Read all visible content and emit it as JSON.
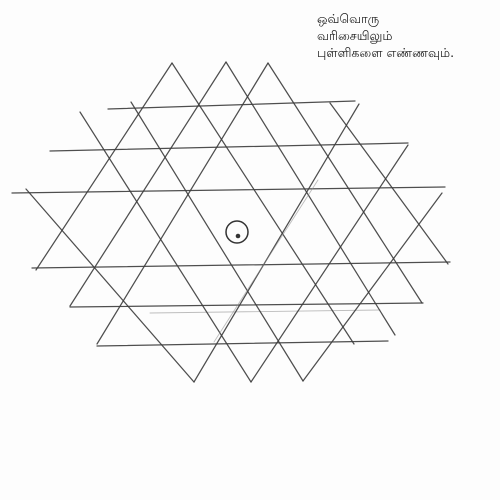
{
  "instruction": {
    "line1": "ஒவ்வொரு",
    "line2": "வரிசையிலும்",
    "line3": "புள்ளிகளை எண்ணவும்."
  },
  "colors": {
    "paper": "#fdfdfd",
    "pencil": "#3c3c3c",
    "text": "#1a1a1a"
  }
}
